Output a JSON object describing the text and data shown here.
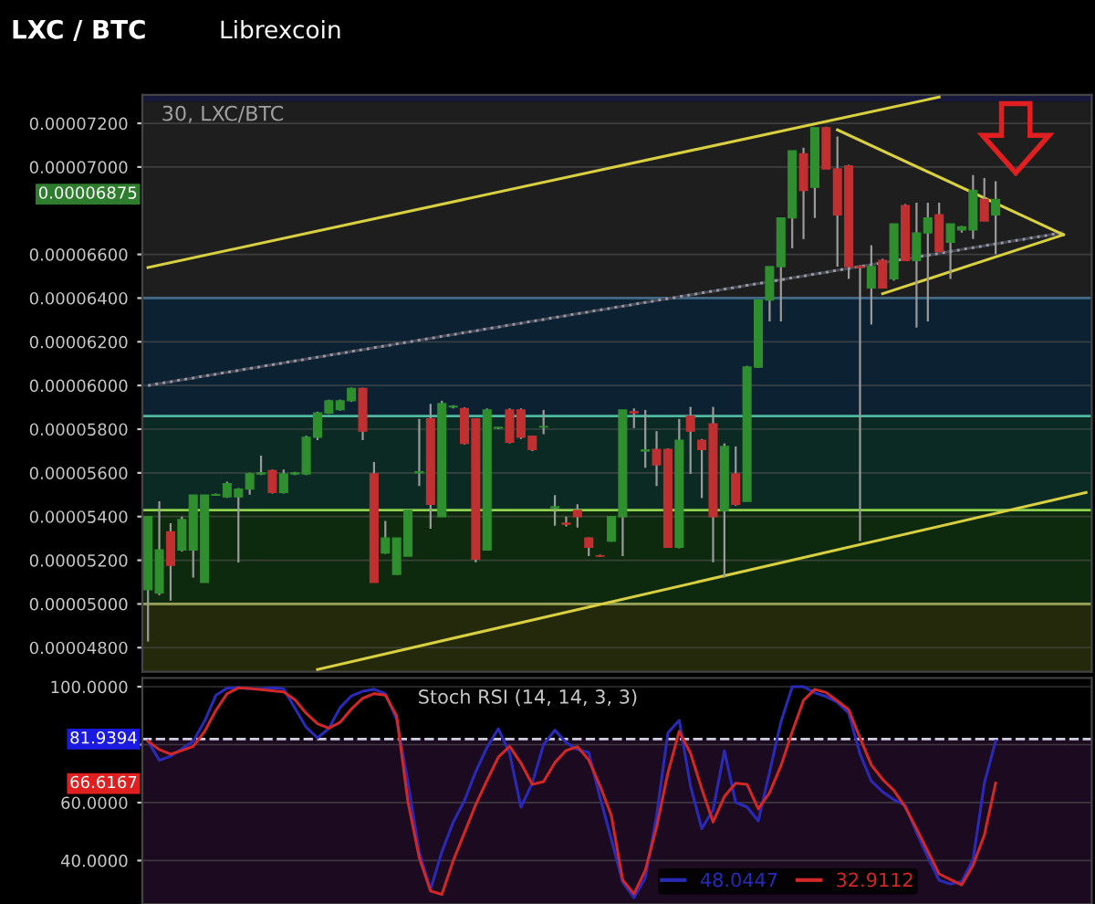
{
  "chart_data": [
    {
      "type": "candlestick",
      "title": "LXC / BTC",
      "subtitle": "Librexcoin",
      "annotations": [
        "30, LXC/BTC",
        "0.00006875"
      ],
      "categories": [
        null,
        null,
        null,
        null,
        null,
        null,
        null,
        null,
        null,
        null,
        null,
        null,
        null,
        null,
        null,
        null,
        null,
        null,
        null,
        null,
        null,
        null,
        null,
        null,
        null,
        null,
        null,
        null,
        null,
        null,
        null,
        null,
        null,
        null,
        null,
        null,
        null,
        null,
        null,
        null,
        null,
        null,
        null,
        null,
        null,
        null,
        null,
        null,
        null,
        null,
        null,
        null,
        null,
        null,
        null,
        null,
        null,
        null,
        null,
        null,
        null,
        null,
        null,
        null,
        null,
        null,
        null,
        null,
        null,
        null,
        null,
        null,
        null,
        null,
        null,
        null,
        null,
        null,
        null,
        null,
        null,
        null,
        null,
        null
      ],
      "ohlc": [
        [
          5.065e-05,
          5.4e-05,
          4.828e-05,
          5.4e-05
        ],
        [
          5.051e-05,
          5.47e-05,
          5.04e-05,
          5.247e-05
        ],
        [
          5.33e-05,
          5.37e-05,
          5.015e-05,
          5.177e-05
        ],
        [
          5.247e-05,
          5.4e-05,
          5.24e-05,
          5.386e-05
        ],
        [
          5.247e-05,
          5.498e-05,
          5.121e-05,
          5.498e-05
        ],
        [
          5.099e-05,
          5.498e-05,
          5.099e-05,
          5.498e-05
        ],
        [
          5.498e-05,
          5.505e-05,
          5.495e-05,
          5.5e-05
        ],
        [
          5.49e-05,
          5.56e-05,
          5.485e-05,
          5.55e-05
        ],
        [
          5.49e-05,
          5.53e-05,
          5.19e-05,
          5.525e-05
        ],
        [
          5.526e-05,
          5.6e-05,
          5.5e-05,
          5.595e-05
        ],
        [
          5.595e-05,
          5.679e-05,
          5.59e-05,
          5.6e-05
        ],
        [
          5.61e-05,
          5.615e-05,
          5.505e-05,
          5.51e-05
        ],
        [
          5.51e-05,
          5.615e-05,
          5.505e-05,
          5.595e-05
        ],
        [
          5.595e-05,
          5.605e-05,
          5.59e-05,
          5.6e-05
        ],
        [
          5.595e-05,
          5.77e-05,
          5.59e-05,
          5.763e-05
        ],
        [
          5.763e-05,
          5.88e-05,
          5.75e-05,
          5.874e-05
        ],
        [
          5.874e-05,
          5.935e-05,
          5.87e-05,
          5.93e-05
        ],
        [
          5.89e-05,
          5.935e-05,
          5.885e-05,
          5.93e-05
        ],
        [
          5.93e-05,
          5.99e-05,
          5.925e-05,
          5.986e-05
        ],
        [
          5.986e-05,
          5.99e-05,
          5.75e-05,
          5.791e-05
        ],
        [
          5.595e-05,
          5.65e-05,
          5.099e-05,
          5.099e-05
        ],
        [
          5.233e-05,
          5.38e-05,
          5.23e-05,
          5.302e-05
        ],
        [
          5.135e-05,
          5.302e-05,
          5.135e-05,
          5.302e-05
        ],
        [
          5.219e-05,
          5.428e-05,
          5.219e-05,
          5.428e-05
        ],
        [
          5.6e-05,
          5.847e-05,
          5.54e-05,
          5.605e-05
        ],
        [
          5.847e-05,
          5.916e-05,
          5.344e-05,
          5.456e-05
        ],
        [
          5.4e-05,
          5.93e-05,
          5.4e-05,
          5.917e-05
        ],
        [
          5.902e-05,
          5.91e-05,
          5.895e-05,
          5.905e-05
        ],
        [
          5.894e-05,
          5.9e-05,
          5.73e-05,
          5.735e-05
        ],
        [
          5.847e-05,
          5.85e-05,
          5.191e-05,
          5.205e-05
        ],
        [
          5.247e-05,
          5.895e-05,
          5.247e-05,
          5.888e-05
        ],
        [
          5.805e-05,
          5.81e-05,
          5.8e-05,
          5.808e-05
        ],
        [
          5.888e-05,
          5.895e-05,
          5.735e-05,
          5.74e-05
        ],
        [
          5.888e-05,
          5.895e-05,
          5.755e-05,
          5.763e-05
        ],
        [
          5.768e-05,
          5.77e-05,
          5.7e-05,
          5.707e-05
        ],
        [
          5.81e-05,
          5.888e-05,
          5.777e-05,
          5.812e-05
        ],
        [
          5.44e-05,
          5.498e-05,
          5.358e-05,
          5.445e-05
        ],
        [
          5.37e-05,
          5.4e-05,
          5.355e-05,
          5.365e-05
        ],
        [
          5.428e-05,
          5.456e-05,
          5.35e-05,
          5.4e-05
        ],
        [
          5.302e-05,
          5.305e-05,
          5.219e-05,
          5.26e-05
        ],
        [
          5.22e-05,
          5.225e-05,
          5.215e-05,
          5.219e-05
        ],
        [
          5.288e-05,
          5.4e-05,
          5.285e-05,
          5.4e-05
        ],
        [
          5.4e-05,
          5.888e-05,
          5.219e-05,
          5.888e-05
        ],
        [
          5.88e-05,
          5.895e-05,
          5.805e-05,
          5.875e-05
        ],
        [
          5.7e-05,
          5.888e-05,
          5.623e-05,
          5.705e-05
        ],
        [
          5.707e-05,
          5.791e-05,
          5.54e-05,
          5.637e-05
        ],
        [
          5.707e-05,
          5.712e-05,
          5.26e-05,
          5.26e-05
        ],
        [
          5.26e-05,
          5.847e-05,
          5.255e-05,
          5.749e-05
        ],
        [
          5.86e-05,
          5.902e-05,
          5.595e-05,
          5.791e-05
        ],
        [
          5.749e-05,
          5.755e-05,
          5.484e-05,
          5.707e-05
        ],
        [
          5.824e-05,
          5.902e-05,
          5.191e-05,
          5.4e-05
        ],
        [
          5.428e-05,
          5.735e-05,
          5.121e-05,
          5.721e-05
        ],
        [
          5.595e-05,
          5.721e-05,
          5.45e-05,
          5.456e-05
        ],
        [
          5.47e-05,
          6.09e-05,
          5.47e-05,
          6.084e-05
        ],
        [
          6.084e-05,
          6.391e-05,
          6.08e-05,
          6.391e-05
        ],
        [
          6.391e-05,
          6.544e-05,
          6.293e-05,
          6.544e-05
        ],
        [
          6.544e-05,
          6.767e-05,
          6.293e-05,
          6.767e-05
        ],
        [
          6.767e-05,
          7.074e-05,
          6.628e-05,
          7.074e-05
        ],
        [
          7.06e-05,
          7.088e-05,
          6.67e-05,
          6.893e-05
        ],
        [
          6.907e-05,
          7.18e-05,
          6.767e-05,
          7.18e-05
        ],
        [
          7.18e-05,
          7.185e-05,
          6.991e-05,
          6.991e-05
        ],
        [
          6.991e-05,
          7.14e-05,
          6.544e-05,
          6.781e-05
        ],
        [
          7.005e-05,
          7.01e-05,
          6.488e-05,
          6.544e-05
        ],
        [
          6.544e-05,
          6.55e-05,
          5.288e-05,
          6.54e-05
        ],
        [
          6.447e-05,
          6.642e-05,
          6.279e-05,
          6.544e-05
        ],
        [
          6.572e-05,
          6.58e-05,
          6.447e-05,
          6.447e-05
        ],
        [
          6.488e-05,
          6.74e-05,
          6.48e-05,
          6.74e-05
        ],
        [
          6.823e-05,
          6.83e-05,
          6.572e-05,
          6.572e-05
        ],
        [
          6.572e-05,
          6.837e-05,
          6.265e-05,
          6.698e-05
        ],
        [
          6.698e-05,
          6.837e-05,
          6.293e-05,
          6.767e-05
        ],
        [
          6.781e-05,
          6.837e-05,
          6.614e-05,
          6.614e-05
        ],
        [
          6.656e-05,
          6.74e-05,
          6.488e-05,
          6.74e-05
        ],
        [
          6.712e-05,
          6.73e-05,
          6.7e-05,
          6.726e-05
        ],
        [
          6.712e-05,
          6.963e-05,
          6.67e-05,
          6.893e-05
        ],
        [
          6.851e-05,
          6.949e-05,
          6.753e-05,
          6.753e-05
        ],
        [
          6.781e-05,
          6.935e-05,
          6.6e-05,
          6.851e-05
        ],
        null,
        null,
        null,
        null,
        null,
        null,
        null,
        null
      ],
      "series": [
        {
          "type": "line",
          "color": "#d8d040",
          "values": [
            6.54e-05,
            null,
            null,
            null,
            null,
            null,
            null,
            null,
            null,
            null,
            null,
            null,
            null,
            null,
            null,
            null,
            null,
            null,
            null,
            null,
            null,
            null,
            null,
            null,
            null,
            null,
            null,
            null,
            null,
            null,
            null,
            null,
            null,
            null,
            null,
            null,
            null,
            null,
            null,
            null,
            null,
            null,
            null,
            null,
            null,
            null,
            null,
            null,
            null,
            null,
            null,
            null,
            null,
            null,
            null,
            null,
            null,
            null,
            null,
            null,
            null,
            null,
            null,
            null,
            null,
            null,
            null,
            null,
            null,
            null,
            7.32e-05,
            null,
            null,
            null,
            null,
            null,
            null,
            null,
            null,
            null,
            null,
            null,
            null,
            null
          ]
        },
        {
          "type": "line",
          "color": "#d8d040",
          "values": [
            null,
            null,
            null,
            null,
            null,
            null,
            null,
            null,
            null,
            null,
            null,
            null,
            null,
            null,
            null,
            4.7e-05,
            null,
            null,
            null,
            null,
            null,
            null,
            null,
            null,
            null,
            null,
            null,
            null,
            null,
            null,
            null,
            null,
            null,
            null,
            null,
            null,
            null,
            null,
            null,
            null,
            null,
            null,
            null,
            null,
            null,
            null,
            null,
            null,
            null,
            null,
            null,
            null,
            null,
            null,
            null,
            null,
            null,
            null,
            null,
            null,
            null,
            null,
            null,
            null,
            null,
            null,
            null,
            null,
            null,
            null,
            null,
            null,
            null,
            null,
            null,
            null,
            null,
            null,
            null,
            null,
            null,
            null,
            null,
            5.51e-05
          ]
        },
        {
          "type": "line",
          "color": "#9a9aaa",
          "line_style": "dotted",
          "values": [
            6e-05,
            null,
            null,
            null,
            null,
            null,
            null,
            null,
            null,
            null,
            null,
            null,
            null,
            null,
            null,
            null,
            null,
            null,
            null,
            null,
            null,
            null,
            null,
            null,
            null,
            null,
            null,
            null,
            null,
            null,
            null,
            null,
            null,
            null,
            null,
            null,
            null,
            null,
            null,
            null,
            null,
            null,
            null,
            null,
            null,
            null,
            null,
            null,
            null,
            null,
            null,
            null,
            null,
            null,
            null,
            null,
            null,
            null,
            null,
            null,
            null,
            null,
            null,
            null,
            null,
            null,
            null,
            null,
            null,
            null,
            null,
            null,
            null,
            null,
            null,
            null,
            null,
            null,
            null,
            null,
            null,
            6.7e-05,
            null,
            null
          ]
        },
        {
          "type": "line",
          "color": "#d8d040",
          "values": [
            null,
            null,
            null,
            null,
            null,
            null,
            null,
            null,
            null,
            null,
            null,
            null,
            null,
            null,
            null,
            null,
            null,
            null,
            null,
            null,
            null,
            null,
            null,
            null,
            null,
            null,
            null,
            null,
            null,
            null,
            null,
            null,
            null,
            null,
            null,
            null,
            null,
            null,
            null,
            null,
            null,
            null,
            null,
            null,
            null,
            null,
            null,
            null,
            null,
            null,
            null,
            null,
            null,
            null,
            null,
            null,
            null,
            null,
            null,
            null,
            null,
            7.17e-05,
            null,
            null,
            null,
            null,
            null,
            null,
            null,
            null,
            null,
            null,
            null,
            null,
            null,
            null,
            null,
            null,
            null,
            null,
            null,
            6.69e-05,
            null,
            null
          ]
        },
        {
          "type": "line",
          "color": "#d8d040",
          "values": [
            null,
            null,
            null,
            null,
            null,
            null,
            null,
            null,
            null,
            null,
            null,
            null,
            null,
            null,
            null,
            null,
            null,
            null,
            null,
            null,
            null,
            null,
            null,
            null,
            null,
            null,
            null,
            null,
            null,
            null,
            null,
            null,
            null,
            null,
            null,
            null,
            null,
            null,
            null,
            null,
            null,
            null,
            null,
            null,
            null,
            null,
            null,
            null,
            null,
            null,
            null,
            null,
            null,
            null,
            null,
            null,
            null,
            null,
            null,
            null,
            null,
            null,
            null,
            null,
            null,
            6.42e-05,
            null,
            null,
            null,
            null,
            null,
            null,
            null,
            null,
            null,
            null,
            null,
            null,
            null,
            null,
            null,
            6.69e-05,
            null,
            null
          ]
        }
      ],
      "bands": [
        {
          "axis": "y",
          "from": 7.3e-05,
          "to": 7.33e-05,
          "color": "#16183c"
        },
        {
          "axis": "y",
          "from": 6.4e-05,
          "to": 7.3e-05,
          "color": "#1e1e1e"
        },
        {
          "axis": "y",
          "from": 5.86e-05,
          "to": 6.4e-05,
          "color": "#0c2232"
        },
        {
          "axis": "y",
          "from": 5.43e-05,
          "to": 5.86e-05,
          "color": "#0c2a24"
        },
        {
          "axis": "y",
          "from": 5e-05,
          "to": 5.43e-05,
          "color": "#0e2a0e"
        },
        {
          "axis": "y",
          "from": 4.69e-05,
          "to": 5e-05,
          "color": "#25290c"
        }
      ],
      "ref_lines": [
        {
          "axis": "y",
          "value": 6.4e-05,
          "color": "#3a7aa8"
        },
        {
          "axis": "y",
          "value": 5.86e-05,
          "color": "#4fb8a0"
        },
        {
          "axis": "y",
          "value": 5.43e-05,
          "color": "#8fd14f"
        },
        {
          "axis": "y",
          "value": 5e-05,
          "color": "#c8d860"
        }
      ],
      "ylim": [
        4.69e-05,
        7.33e-05
      ],
      "yticks": [
        {
          "value": 4.8e-05,
          "label": "0.00004800"
        },
        {
          "value": 5e-05,
          "label": "0.00005000"
        },
        {
          "value": 5.2e-05,
          "label": "0.00005200"
        },
        {
          "value": 5.4e-05,
          "label": "0.00005400"
        },
        {
          "value": 5.6e-05,
          "label": "0.00005600"
        },
        {
          "value": 5.8e-05,
          "label": "0.00005800"
        },
        {
          "value": 6e-05,
          "label": "0.00006000"
        },
        {
          "value": 6.2e-05,
          "label": "0.00006200"
        },
        {
          "value": 6.4e-05,
          "label": "0.00006400"
        },
        {
          "value": 6.6e-05,
          "label": "0.00006600"
        },
        {
          "value": 7e-05,
          "label": "0.00007000"
        },
        {
          "value": 7.2e-05,
          "label": "0.00007200"
        }
      ],
      "tick_labels": "y",
      "grid": "y"
    },
    {
      "type": "line",
      "title": "Stoch RSI (14, 14, 3, 3)",
      "annotations": [
        "66.6167"
      ],
      "categories": [
        null,
        null,
        null,
        null,
        null,
        null,
        null,
        null,
        null,
        null,
        null,
        null,
        null,
        null,
        null,
        null,
        null,
        null,
        null,
        null,
        null,
        null,
        null,
        null,
        null,
        null,
        null,
        null,
        null,
        null,
        null,
        null,
        null,
        null,
        null,
        null,
        null,
        null,
        null,
        null,
        null,
        null,
        null,
        null,
        null,
        null,
        null,
        null,
        null,
        null,
        null,
        null,
        null,
        null,
        null,
        null,
        null,
        null,
        null,
        null,
        null,
        null,
        null,
        null,
        null,
        null,
        null,
        null,
        null,
        null,
        null,
        null,
        null,
        null,
        null,
        null
      ],
      "series": [
        {
          "name": "48.0447",
          "color": "#2a2ab8",
          "values": [
            81.2,
            74.6,
            76,
            78.6,
            81.2,
            88,
            97,
            99.5,
            99.7,
            99.3,
            99.3,
            99.6,
            99.3,
            92.6,
            86,
            82.3,
            85.6,
            92.8,
            96.8,
            98.4,
            99.1,
            97.6,
            88.7,
            67,
            43,
            30,
            43,
            53.2,
            60.7,
            70.7,
            79.1,
            85.5,
            77,
            58.4,
            66.7,
            80,
            85,
            80.7,
            78.3,
            77.3,
            61.7,
            47.3,
            32.5,
            27.2,
            34,
            55.5,
            84,
            88.4,
            65.7,
            51,
            57.5,
            77.9,
            60,
            58.5,
            53.7,
            70.6,
            87.8,
            100,
            100,
            97.9,
            96.6,
            94.6,
            90.8,
            76.8,
            67.4,
            63.7,
            61,
            59.1,
            49.7,
            41.1,
            33.2,
            31.9,
            32.7,
            40.3,
            66.7,
            81.2
          ]
        },
        {
          "name": "32.9112",
          "color": "#d02828",
          "values": [
            81.2,
            78.3,
            76.7,
            78,
            79.4,
            84.5,
            91.8,
            97.6,
            99.6,
            99.4,
            99,
            98.6,
            98.2,
            95.5,
            90.8,
            87.2,
            85.7,
            87.7,
            92.3,
            96,
            97.6,
            97.1,
            89.9,
            60.3,
            41,
            29.5,
            28.3,
            39.9,
            49.6,
            59.3,
            67.7,
            75.7,
            79.4,
            73.6,
            66.3,
            67.2,
            73.8,
            78,
            79.3,
            74.7,
            65.8,
            55.5,
            33.3,
            28.5,
            36.6,
            51.5,
            70.2,
            84.6,
            77.1,
            64.7,
            53.3,
            62.1,
            66.7,
            66.3,
            57.8,
            63.4,
            72.7,
            84.4,
            95.3,
            99.1,
            98,
            95.1,
            92.1,
            82.3,
            73,
            68,
            64.2,
            58.5,
            51,
            43.2,
            35.4,
            33.5,
            31.6,
            38.3,
            48.8,
            66.7
          ]
        }
      ],
      "bands": [
        {
          "axis": "y",
          "from": 25,
          "to": 81.9394,
          "color": "#1c0a20"
        }
      ],
      "ref_lines": [
        {
          "axis": "y",
          "value": 81.9394,
          "label": "81.9394",
          "color": "#d0d0e0",
          "line_style": "dashed"
        }
      ],
      "ylim": [
        25,
        103
      ],
      "yticks": [
        {
          "value": 40,
          "label": "40.0000"
        },
        {
          "value": 60,
          "label": "60.0000"
        },
        {
          "value": 80,
          "label": null
        },
        {
          "value": 100,
          "label": "100.0000"
        }
      ],
      "tick_labels": "y",
      "grid": "y",
      "legend": "bottom"
    }
  ]
}
